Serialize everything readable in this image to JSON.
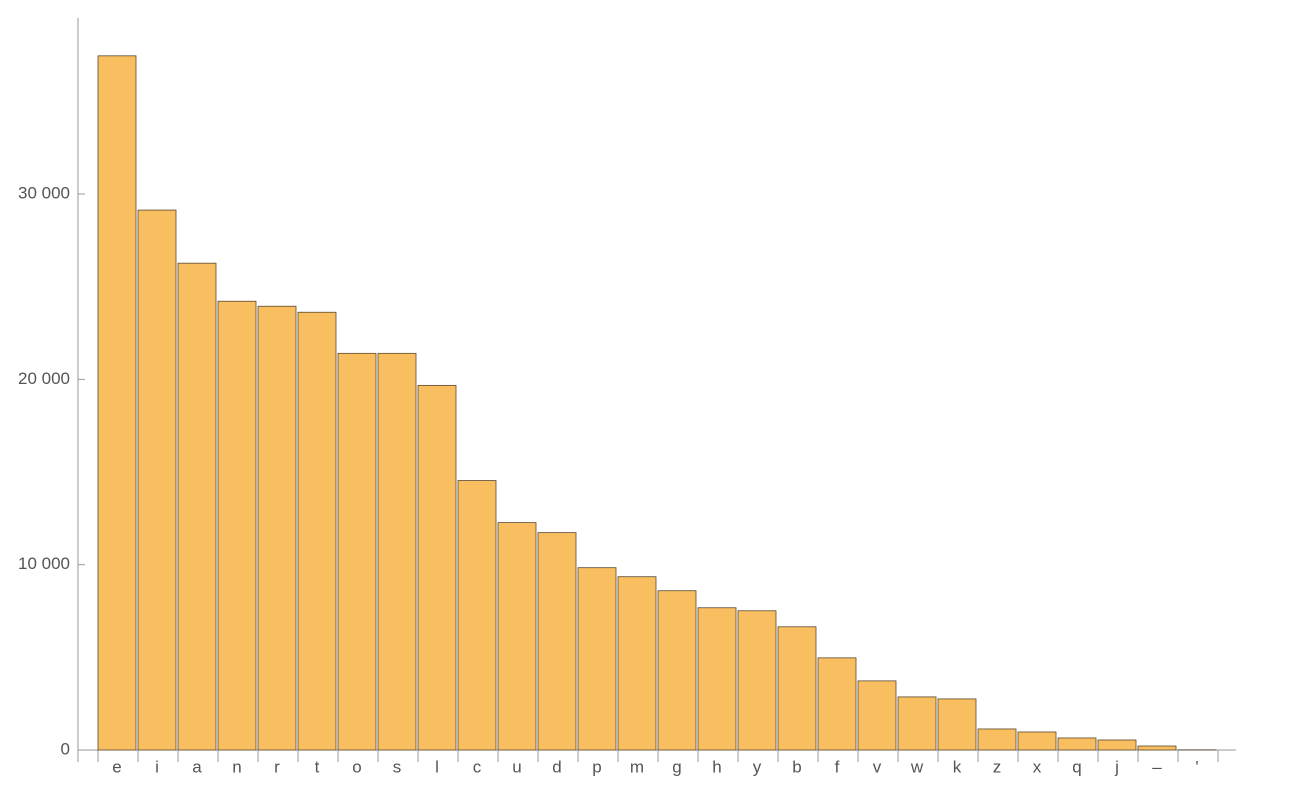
{
  "chart_data": {
    "type": "bar",
    "categories": [
      "e",
      "i",
      "a",
      "n",
      "r",
      "t",
      "o",
      "s",
      "l",
      "c",
      "u",
      "d",
      "p",
      "m",
      "g",
      "h",
      "y",
      "b",
      "f",
      "v",
      "w",
      "k",
      "z",
      "x",
      "q",
      "j",
      "–",
      "'"
    ],
    "values": [
      37459,
      29135,
      26270,
      24216,
      23946,
      23622,
      21405,
      21405,
      19676,
      14541,
      12270,
      11730,
      9838,
      9351,
      8595,
      7676,
      7514,
      6649,
      4973,
      3730,
      2865,
      2757,
      1135,
      973,
      649,
      541,
      216,
      10
    ],
    "color": "#f8be5f",
    "ylim": [
      0,
      39500
    ],
    "yticks": [
      0,
      {
        "value": 10000,
        "label": "10 000"
      },
      {
        "value": 20000,
        "label": "20 000"
      },
      {
        "value": 30000,
        "label": "30 000"
      }
    ],
    "grid": false
  }
}
